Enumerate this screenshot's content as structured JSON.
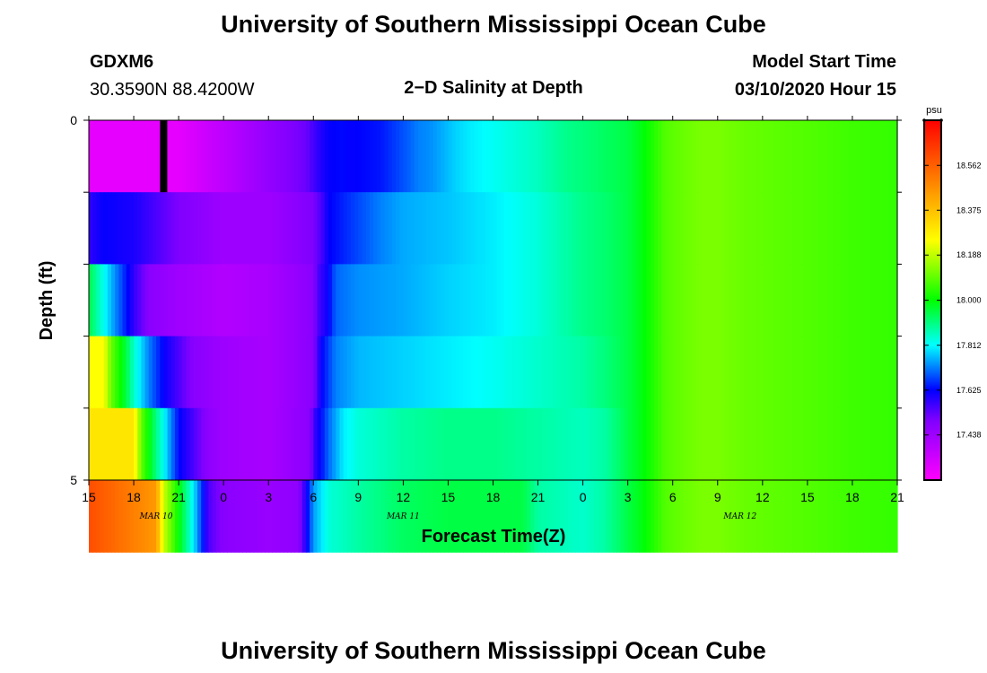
{
  "header": {
    "title": "University of Southern Mississippi Ocean Cube",
    "station": "GDXM6",
    "coordinates": "30.3590N 88.4200W",
    "subtitle": "2−D Salinity at Depth",
    "model_start_label": "Model Start Time",
    "model_start_value": "03/10/2020 Hour 15"
  },
  "footer": {
    "title": "University of Southern Mississippi Ocean Cube"
  },
  "chart_data": {
    "type": "heatmap",
    "title": "2−D Salinity at Depth",
    "xlabel": "Forecast Time(Z)",
    "ylabel": "Depth (ft)",
    "x_tick_labels": [
      "15",
      "18",
      "21",
      "0",
      "3",
      "6",
      "9",
      "12",
      "15",
      "18",
      "21",
      "0",
      "3",
      "6",
      "9",
      "12",
      "15",
      "18",
      "21"
    ],
    "x_tick_hours": [
      0,
      3,
      6,
      9,
      12,
      15,
      18,
      21,
      24,
      27,
      30,
      33,
      36,
      39,
      42,
      45,
      48,
      51,
      54
    ],
    "xlim_hours": [
      0,
      54
    ],
    "date_labels": [
      {
        "text": "MAR 10",
        "hour": 4.5
      },
      {
        "text": "MAR 11",
        "hour": 21
      },
      {
        "text": "MAR 12",
        "hour": 43.5
      }
    ],
    "y_tick_labels": [
      "0",
      "5"
    ],
    "ylim": [
      0,
      5
    ],
    "depth_rows": 5,
    "colorbar": {
      "unit": "psu",
      "range": [
        17.25,
        18.75
      ],
      "tick_labels": [
        "18.562",
        "18.375",
        "18.188",
        "18.000",
        "17.812",
        "17.625",
        "17.438"
      ],
      "tick_values": [
        18.562,
        18.375,
        18.188,
        18.0,
        17.812,
        17.625,
        17.438
      ]
    },
    "marker_hour": 5,
    "series": [
      {
        "x": [
          0,
          3.5,
          5,
          6,
          9,
          12,
          14.5,
          15.3,
          16,
          17,
          17.5,
          18.5,
          19.5,
          20.5,
          21.5,
          22,
          22.8,
          23.5,
          24.5,
          25.5,
          27,
          30,
          32,
          33,
          34.5,
          36,
          37,
          38,
          38.5,
          39.5,
          41,
          42,
          44,
          48,
          51,
          54
        ],
        "values": [
          17.3,
          17.3,
          17.3,
          17.3,
          17.38,
          17.46,
          17.52,
          17.58,
          17.62,
          17.63,
          17.62,
          17.63,
          17.64,
          17.67,
          17.7,
          17.72,
          17.73,
          17.75,
          17.78,
          17.8,
          17.82,
          17.86,
          17.9,
          17.91,
          17.93,
          17.95,
          17.99,
          18.05,
          18.08,
          18.1,
          18.12,
          18.12,
          18.1,
          18.08,
          18.06,
          18.05
        ]
      },
      {
        "x": [
          0,
          0.5,
          1,
          3,
          6,
          9,
          12,
          15,
          15.5,
          16,
          17,
          19.5,
          21,
          22.5,
          24,
          27,
          30,
          32,
          33,
          34.5,
          36,
          37,
          38,
          38.5,
          39.5,
          41,
          42,
          44,
          48,
          51,
          54
        ],
        "values": [
          17.58,
          17.6,
          17.62,
          17.6,
          17.5,
          17.44,
          17.44,
          17.5,
          17.55,
          17.62,
          17.65,
          17.72,
          17.75,
          17.76,
          17.77,
          17.8,
          17.84,
          17.88,
          17.9,
          17.92,
          17.95,
          17.99,
          18.05,
          18.08,
          18.1,
          18.12,
          18.12,
          18.1,
          18.08,
          18.06,
          18.05
        ]
      },
      {
        "x": [
          0,
          1,
          2,
          3,
          4,
          6,
          9,
          12,
          15,
          15.3,
          16,
          16.5,
          18,
          21,
          24,
          27,
          30,
          33,
          34.5,
          36,
          37,
          38,
          38.5,
          39.5,
          41,
          42,
          44,
          48,
          51,
          54
        ],
        "values": [
          17.95,
          17.82,
          17.7,
          17.58,
          17.48,
          17.44,
          17.4,
          17.42,
          17.48,
          17.55,
          17.62,
          17.7,
          17.73,
          17.75,
          17.78,
          17.8,
          17.84,
          17.9,
          17.92,
          17.95,
          17.99,
          18.05,
          18.08,
          18.1,
          18.12,
          18.12,
          18.1,
          18.08,
          18.06,
          18.05
        ]
      },
      {
        "x": [
          0,
          1,
          1.5,
          2.5,
          3,
          4,
          5,
          6,
          7,
          9,
          12,
          15,
          15.3,
          15.5,
          16.5,
          18,
          21,
          24,
          27,
          30,
          33,
          34.5,
          36,
          37,
          38,
          38.5,
          39.5,
          41,
          42,
          44,
          48,
          51,
          54
        ],
        "values": [
          18.25,
          18.25,
          18.1,
          17.95,
          17.85,
          17.72,
          17.62,
          17.55,
          17.48,
          17.44,
          17.42,
          17.48,
          17.56,
          17.62,
          17.72,
          17.76,
          17.78,
          17.8,
          17.82,
          17.85,
          17.88,
          17.91,
          17.95,
          17.99,
          18.05,
          18.08,
          18.1,
          18.12,
          18.12,
          18.1,
          18.08,
          18.06,
          18.05
        ]
      },
      {
        "x": [
          0,
          3,
          3.5,
          4,
          4.5,
          5,
          5.5,
          6,
          7,
          8,
          9,
          12,
          14.8,
          15,
          16,
          17,
          18,
          21,
          24,
          27,
          30,
          33,
          34.5,
          36,
          37,
          38,
          38.5,
          39.5,
          41,
          42,
          44,
          48,
          51,
          54
        ],
        "values": [
          18.3,
          18.3,
          18.1,
          18.0,
          17.9,
          17.82,
          17.72,
          17.63,
          17.55,
          17.47,
          17.44,
          17.42,
          17.48,
          17.56,
          17.7,
          17.8,
          17.84,
          17.88,
          17.9,
          17.9,
          17.88,
          17.86,
          17.88,
          17.95,
          17.99,
          18.05,
          18.08,
          18.1,
          18.12,
          18.12,
          18.1,
          18.08,
          18.06,
          18.05
        ]
      },
      {
        "x": [
          0,
          4.5,
          5,
          6,
          6.5,
          7,
          8,
          9,
          12,
          14,
          14.5,
          15,
          16,
          18,
          21,
          24,
          27,
          29,
          30,
          33,
          34.5,
          36,
          37,
          38,
          38.5,
          39.5,
          41,
          42,
          44,
          48,
          51,
          54
        ],
        "values": [
          18.6,
          18.45,
          18.2,
          18.0,
          17.9,
          17.8,
          17.55,
          17.48,
          17.45,
          17.47,
          17.6,
          17.74,
          17.84,
          17.88,
          17.93,
          17.95,
          17.95,
          17.95,
          17.88,
          17.85,
          17.88,
          17.95,
          17.99,
          18.05,
          18.08,
          18.1,
          18.12,
          18.12,
          18.1,
          18.08,
          18.06,
          18.05
        ]
      }
    ]
  }
}
